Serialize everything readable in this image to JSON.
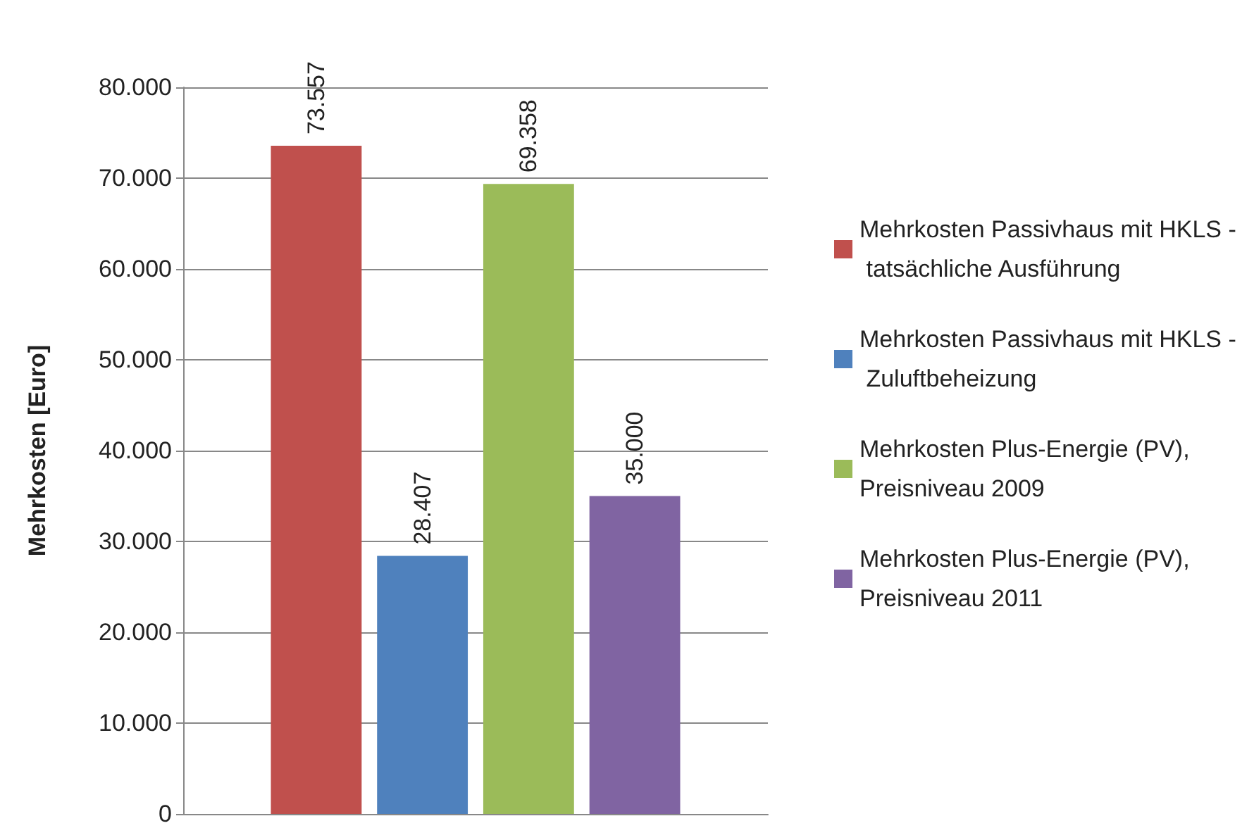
{
  "chart_data": {
    "type": "bar",
    "ylabel": "Mehrkosten [Euro]",
    "categories": [
      null
    ],
    "series": [
      {
        "name": "Mehrkosten Passivhaus mit HKLS - tatsächliche Ausführung",
        "color": "#c0504d",
        "values": [
          73557
        ],
        "value_labels": [
          "73.557"
        ]
      },
      {
        "name": "Mehrkosten Passivhaus mit HKLS - Zuluftbeheizung",
        "color": "#4f81bd",
        "values": [
          28407
        ],
        "value_labels": [
          "28.407"
        ]
      },
      {
        "name": "Mehrkosten Plus-Energie (PV), Preisniveau 2009",
        "color": "#9bbb59",
        "values": [
          69358
        ],
        "value_labels": [
          "69.358"
        ]
      },
      {
        "name": "Mehrkosten Plus-Energie (PV), Preisniveau 2011",
        "color": "#8064a2",
        "values": [
          35000
        ],
        "value_labels": [
          "35.000"
        ]
      }
    ],
    "ylim": [
      0,
      80000
    ],
    "yticks": [
      {
        "value": 0,
        "label": "0"
      },
      {
        "value": 10000,
        "label": "10.000"
      },
      {
        "value": 20000,
        "label": "20.000"
      },
      {
        "value": 30000,
        "label": "30.000"
      },
      {
        "value": 40000,
        "label": "40.000"
      },
      {
        "value": 50000,
        "label": "50.000"
      },
      {
        "value": 60000,
        "label": "60.000"
      },
      {
        "value": 70000,
        "label": "70.000"
      },
      {
        "value": 80000,
        "label": "80.000"
      }
    ],
    "grid": "y",
    "legend": "right"
  }
}
